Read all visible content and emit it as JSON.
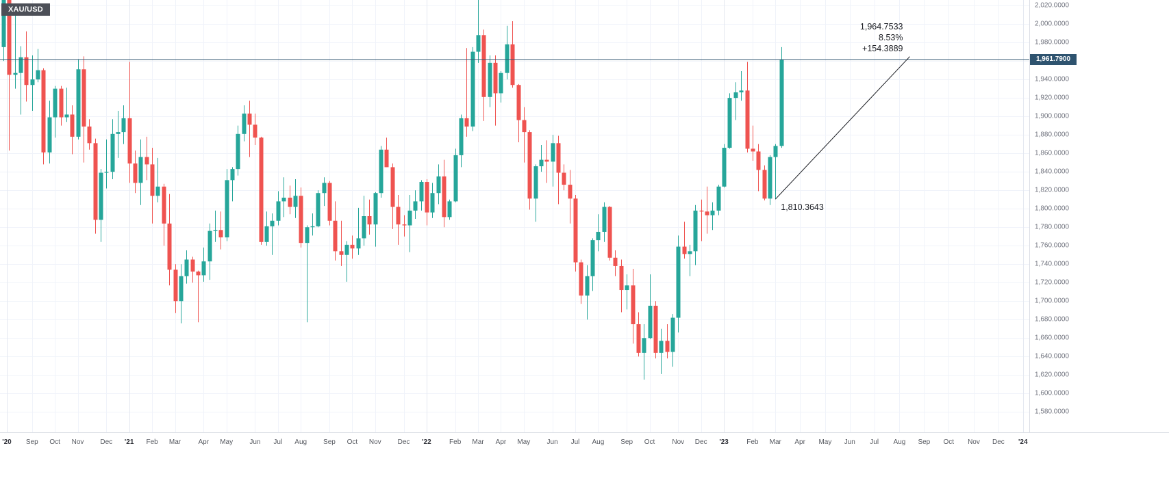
{
  "symbol_badge": "XAU/USD",
  "last_price": {
    "value": 1961.79,
    "label": "1,961.7900"
  },
  "measure_tool": {
    "price_label": "1,964.7533",
    "percent_label": "8.53%",
    "change_label": "+154.3889",
    "start_label": "1,810.3643",
    "start": {
      "week": 135,
      "price": 1810.3643
    },
    "end": {
      "week": 158.5,
      "price": 1964.7533
    }
  },
  "colors": {
    "up": "#26a69a",
    "down": "#ef5350",
    "grid": "#f0f3fa",
    "grid_year": "#e4e8f0",
    "price_line": "#2e536f",
    "trend_line": "#1c1e24",
    "badge_bg": "#4c4f57"
  },
  "chart_data": {
    "type": "candlestick",
    "symbol": "XAU/USD",
    "grid": true,
    "y_range": [
      1558,
      2026
    ],
    "y_ticks": [
      2020,
      2000,
      1980,
      1960,
      1940,
      1920,
      1900,
      1880,
      1860,
      1840,
      1820,
      1800,
      1780,
      1760,
      1740,
      1720,
      1700,
      1680,
      1660,
      1640,
      1620,
      1600,
      1580
    ],
    "up_color": "#26a69a",
    "down_color": "#ef5350",
    "x_ticks": [
      {
        "label": "'20",
        "week": 0.6,
        "year": true
      },
      {
        "label": "Sep",
        "week": 5
      },
      {
        "label": "Oct",
        "week": 9
      },
      {
        "label": "Nov",
        "week": 13
      },
      {
        "label": "Dec",
        "week": 18
      },
      {
        "label": "'21",
        "week": 22,
        "year": true
      },
      {
        "label": "Feb",
        "week": 26
      },
      {
        "label": "Mar",
        "week": 30
      },
      {
        "label": "Apr",
        "week": 35
      },
      {
        "label": "May",
        "week": 39
      },
      {
        "label": "Jun",
        "week": 44
      },
      {
        "label": "Jul",
        "week": 48
      },
      {
        "label": "Aug",
        "week": 52
      },
      {
        "label": "Sep",
        "week": 57
      },
      {
        "label": "Oct",
        "week": 61
      },
      {
        "label": "Nov",
        "week": 65
      },
      {
        "label": "Dec",
        "week": 70
      },
      {
        "label": "'22",
        "week": 74,
        "year": true
      },
      {
        "label": "Feb",
        "week": 79
      },
      {
        "label": "Mar",
        "week": 83
      },
      {
        "label": "Apr",
        "week": 87
      },
      {
        "label": "May",
        "week": 91
      },
      {
        "label": "Jun",
        "week": 96
      },
      {
        "label": "Jul",
        "week": 100
      },
      {
        "label": "Aug",
        "week": 104
      },
      {
        "label": "Sep",
        "week": 109
      },
      {
        "label": "Oct",
        "week": 113
      },
      {
        "label": "Nov",
        "week": 118
      },
      {
        "label": "Dec",
        "week": 122
      },
      {
        "label": "'23",
        "week": 126,
        "year": true
      },
      {
        "label": "Feb",
        "week": 131
      },
      {
        "label": "Mar",
        "week": 135
      },
      {
        "label": "Apr",
        "week": 139.3
      },
      {
        "label": "May",
        "week": 143.7
      },
      {
        "label": "Jun",
        "week": 148
      },
      {
        "label": "Jul",
        "week": 152.3
      },
      {
        "label": "Aug",
        "week": 156.7
      },
      {
        "label": "Sep",
        "week": 161
      },
      {
        "label": "Oct",
        "week": 165.3
      },
      {
        "label": "Nov",
        "week": 169.7
      },
      {
        "label": "Dec",
        "week": 174
      },
      {
        "label": "'24",
        "week": 178.3,
        "year": true
      }
    ],
    "candles_ohlc": [
      [
        1975,
        2075,
        1960,
        2035
      ],
      [
        2035,
        2050,
        1863,
        1945
      ],
      [
        1945,
        2015,
        1930,
        1947
      ],
      [
        1947,
        1976,
        1902,
        1964
      ],
      [
        1964,
        1992,
        1916,
        1934
      ],
      [
        1934,
        1966,
        1906,
        1940
      ],
      [
        1940,
        1973,
        1937,
        1950
      ],
      [
        1950,
        1952,
        1848,
        1861
      ],
      [
        1861,
        1917,
        1849,
        1899
      ],
      [
        1899,
        1933,
        1877,
        1930
      ],
      [
        1930,
        1933,
        1890,
        1899
      ],
      [
        1899,
        1931,
        1894,
        1902
      ],
      [
        1902,
        1912,
        1859,
        1878
      ],
      [
        1878,
        1962,
        1875,
        1951
      ],
      [
        1951,
        1965,
        1850,
        1889
      ],
      [
        1889,
        1897,
        1864,
        1871
      ],
      [
        1871,
        1876,
        1773,
        1788
      ],
      [
        1788,
        1843,
        1764,
        1839
      ],
      [
        1839,
        1875,
        1822,
        1840
      ],
      [
        1840,
        1897,
        1832,
        1881
      ],
      [
        1881,
        1906,
        1855,
        1883
      ],
      [
        1883,
        1912,
        1870,
        1898
      ],
      [
        1898,
        1959,
        1828,
        1849
      ],
      [
        1849,
        1863,
        1817,
        1828
      ],
      [
        1828,
        1875,
        1804,
        1856
      ],
      [
        1856,
        1878,
        1831,
        1848
      ],
      [
        1848,
        1866,
        1784,
        1814
      ],
      [
        1814,
        1855,
        1807,
        1824
      ],
      [
        1824,
        1827,
        1760,
        1784
      ],
      [
        1784,
        1816,
        1717,
        1734
      ],
      [
        1734,
        1740,
        1687,
        1700
      ],
      [
        1700,
        1740,
        1676,
        1727
      ],
      [
        1727,
        1755,
        1719,
        1745
      ],
      [
        1745,
        1748,
        1720,
        1732
      ],
      [
        1732,
        1733,
        1677,
        1728
      ],
      [
        1728,
        1758,
        1721,
        1743
      ],
      [
        1743,
        1784,
        1723,
        1776
      ],
      [
        1776,
        1798,
        1764,
        1777
      ],
      [
        1777,
        1797,
        1756,
        1769
      ],
      [
        1769,
        1843,
        1765,
        1831
      ],
      [
        1831,
        1845,
        1808,
        1843
      ],
      [
        1843,
        1890,
        1836,
        1881
      ],
      [
        1881,
        1912,
        1873,
        1903
      ],
      [
        1903,
        1917,
        1856,
        1891
      ],
      [
        1891,
        1903,
        1869,
        1877
      ],
      [
        1877,
        1878,
        1761,
        1764
      ],
      [
        1764,
        1797,
        1760,
        1781
      ],
      [
        1781,
        1795,
        1750,
        1787
      ],
      [
        1787,
        1819,
        1782,
        1808
      ],
      [
        1808,
        1834,
        1791,
        1812
      ],
      [
        1812,
        1825,
        1794,
        1802
      ],
      [
        1802,
        1832,
        1790,
        1814
      ],
      [
        1814,
        1823,
        1758,
        1763
      ],
      [
        1763,
        1782,
        1677,
        1780
      ],
      [
        1780,
        1795,
        1771,
        1781
      ],
      [
        1781,
        1820,
        1780,
        1817
      ],
      [
        1817,
        1834,
        1803,
        1828
      ],
      [
        1828,
        1830,
        1782,
        1787
      ],
      [
        1787,
        1808,
        1744,
        1754
      ],
      [
        1754,
        1787,
        1738,
        1750
      ],
      [
        1750,
        1765,
        1721,
        1761
      ],
      [
        1761,
        1771,
        1746,
        1757
      ],
      [
        1757,
        1801,
        1750,
        1768
      ],
      [
        1768,
        1814,
        1760,
        1792
      ],
      [
        1792,
        1810,
        1772,
        1783
      ],
      [
        1783,
        1818,
        1759,
        1817
      ],
      [
        1817,
        1868,
        1812,
        1864
      ],
      [
        1864,
        1877,
        1845,
        1845
      ],
      [
        1845,
        1849,
        1778,
        1802
      ],
      [
        1802,
        1815,
        1761,
        1783
      ],
      [
        1783,
        1793,
        1770,
        1782
      ],
      [
        1782,
        1815,
        1753,
        1798
      ],
      [
        1798,
        1820,
        1789,
        1808
      ],
      [
        1808,
        1831,
        1798,
        1829
      ],
      [
        1829,
        1832,
        1782,
        1796
      ],
      [
        1796,
        1828,
        1790,
        1817
      ],
      [
        1817,
        1848,
        1805,
        1835
      ],
      [
        1835,
        1853,
        1780,
        1791
      ],
      [
        1791,
        1810,
        1788,
        1808
      ],
      [
        1808,
        1865,
        1807,
        1858
      ],
      [
        1858,
        1902,
        1845,
        1898
      ],
      [
        1898,
        1974,
        1878,
        1889
      ],
      [
        1889,
        1975,
        1884,
        1970
      ],
      [
        1970,
        2070,
        1958,
        1988
      ],
      [
        1988,
        1994,
        1895,
        1921
      ],
      [
        1921,
        1966,
        1910,
        1958
      ],
      [
        1958,
        1966,
        1890,
        1925
      ],
      [
        1925,
        1949,
        1915,
        1947
      ],
      [
        1947,
        1998,
        1940,
        1978
      ],
      [
        1978,
        2003,
        1931,
        1934
      ],
      [
        1934,
        1935,
        1872,
        1896
      ],
      [
        1896,
        1910,
        1850,
        1883
      ],
      [
        1883,
        1885,
        1799,
        1811
      ],
      [
        1811,
        1848,
        1786,
        1846
      ],
      [
        1846,
        1869,
        1840,
        1853
      ],
      [
        1853,
        1874,
        1828,
        1851
      ],
      [
        1851,
        1880,
        1824,
        1871
      ],
      [
        1871,
        1879,
        1805,
        1839
      ],
      [
        1839,
        1848,
        1820,
        1826
      ],
      [
        1826,
        1842,
        1784,
        1811
      ],
      [
        1811,
        1815,
        1732,
        1742
      ],
      [
        1742,
        1745,
        1697,
        1706
      ],
      [
        1706,
        1739,
        1680,
        1727
      ],
      [
        1727,
        1768,
        1711,
        1766
      ],
      [
        1766,
        1794,
        1754,
        1775
      ],
      [
        1775,
        1807,
        1764,
        1802
      ],
      [
        1802,
        1803,
        1744,
        1747
      ],
      [
        1747,
        1755,
        1727,
        1738
      ],
      [
        1738,
        1745,
        1688,
        1712
      ],
      [
        1712,
        1729,
        1691,
        1717
      ],
      [
        1717,
        1735,
        1654,
        1675
      ],
      [
        1675,
        1688,
        1640,
        1644
      ],
      [
        1644,
        1675,
        1615,
        1660
      ],
      [
        1660,
        1729,
        1659,
        1695
      ],
      [
        1695,
        1700,
        1638,
        1644
      ],
      [
        1644,
        1670,
        1621,
        1657
      ],
      [
        1657,
        1675,
        1638,
        1645
      ],
      [
        1645,
        1686,
        1629,
        1682
      ],
      [
        1682,
        1771,
        1666,
        1759
      ],
      [
        1759,
        1786,
        1746,
        1751
      ],
      [
        1751,
        1761,
        1727,
        1754
      ],
      [
        1754,
        1804,
        1739,
        1798
      ],
      [
        1798,
        1810,
        1765,
        1797
      ],
      [
        1797,
        1824,
        1773,
        1793
      ],
      [
        1793,
        1807,
        1777,
        1798
      ],
      [
        1798,
        1826,
        1793,
        1824
      ],
      [
        1824,
        1870,
        1823,
        1866
      ],
      [
        1866,
        1925,
        1865,
        1920
      ],
      [
        1920,
        1937,
        1896,
        1926
      ],
      [
        1926,
        1949,
        1917,
        1928
      ],
      [
        1928,
        1959,
        1861,
        1865
      ],
      [
        1865,
        1890,
        1852,
        1862
      ],
      [
        1862,
        1870,
        1819,
        1842
      ],
      [
        1842,
        1847,
        1809,
        1811
      ],
      [
        1811,
        1858,
        1804,
        1856
      ],
      [
        1856,
        1870,
        1810.3643,
        1868
      ],
      [
        1868,
        1975,
        1866,
        1961.79
      ]
    ]
  }
}
